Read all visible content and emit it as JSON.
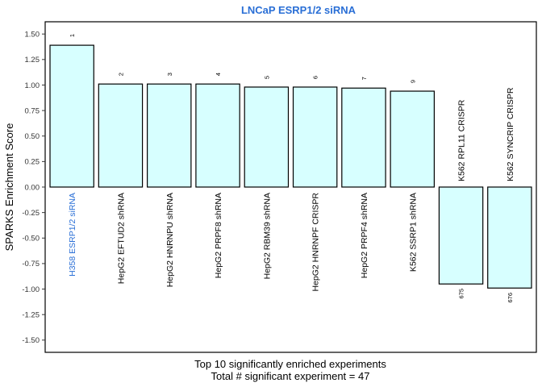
{
  "chart_data": {
    "type": "bar",
    "title": "LNCaP ESRP1/2 siRNA",
    "ylabel": "SPARKS Enrichment Score",
    "xlabel_lines": [
      "Top 10 significantly enriched experiments",
      "Total # significant experiment = 47"
    ],
    "ylim": [
      -1.62,
      1.62
    ],
    "yticks": [
      "-1.50",
      "-1.25",
      "-1.00",
      "-0.75",
      "-0.50",
      "-0.25",
      "0.00",
      "0.25",
      "0.50",
      "0.75",
      "1.00",
      "1.25",
      "1.50"
    ],
    "categories": [
      "H358 ESRP1/2 siRNA",
      "HepG2 EFTUD2 shRNA",
      "HepG2 HNRNPU shRNA",
      "HepG2 PRPF8 shRNA",
      "HepG2 RBM39 shRNA",
      "HepG2 HNRNPF CRISPR",
      "HepG2 PRPF4 shRNA",
      "K562 SSRP1 shRNA",
      "K562 RPL11 CRISPR",
      "K562 SYNCRIP CRISPR"
    ],
    "values": [
      1.39,
      1.01,
      1.01,
      1.01,
      0.98,
      0.98,
      0.97,
      0.94,
      -0.95,
      -0.99
    ],
    "ranks": [
      "1",
      "2",
      "3",
      "4",
      "5",
      "6",
      "7",
      "9",
      "675",
      "676"
    ],
    "highlight_index": 0,
    "grid": false
  },
  "colors": {
    "bar_fill": "#d7ffff",
    "bar_stroke": "#000000",
    "title": "#2a6fd6",
    "highlight_label": "#2a6fd6",
    "text": "#000000"
  }
}
